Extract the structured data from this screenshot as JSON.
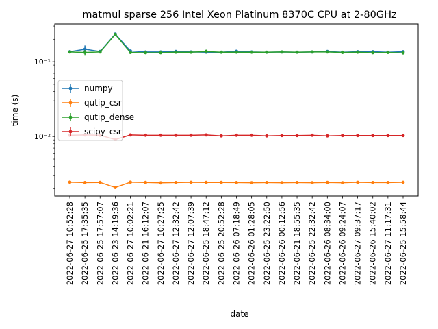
{
  "chart_data": {
    "type": "line",
    "title": "matmul sparse 256 Intel Xeon Platinum 8370C CPU at 2-80GHz",
    "xlabel": "date",
    "ylabel": "time (s)",
    "yscale": "log",
    "ylim": [
      0.0016,
      0.32
    ],
    "y_tick_labels": [
      "10⁻²",
      "10⁻¹"
    ],
    "y_tick_values": [
      0.01,
      0.1
    ],
    "legend_position": "center-left",
    "grid": false,
    "categories": [
      "2022-06-27 10:52:28",
      "2022-06-25 17:35:35",
      "2022-06-25 17:57:07",
      "2022-06-23 14:19:36",
      "2022-06-27 10:02:21",
      "2022-06-21 16:12:07",
      "2022-06-27 10:27:25",
      "2022-06-27 12:32:42",
      "2022-06-27 12:07:39",
      "2022-06-25 18:47:12",
      "2022-06-25 20:52:28",
      "2022-06-26 07:18:49",
      "2022-06-26 01:28:05",
      "2022-06-25 23:22:50",
      "2022-06-26 00:12:56",
      "2022-06-21 18:55:35",
      "2022-06-25 22:32:42",
      "2022-06-26 08:34:00",
      "2022-06-26 09:24:07",
      "2022-06-27 09:37:17",
      "2022-06-26 15:40:02",
      "2022-06-27 11:17:31",
      "2022-06-25 15:58:44"
    ],
    "series": [
      {
        "name": "numpy",
        "color": "#1f77b4",
        "values": [
          0.136,
          0.147,
          0.137,
          0.235,
          0.139,
          0.135,
          0.135,
          0.137,
          0.135,
          0.134,
          0.134,
          0.138,
          0.135,
          0.134,
          0.135,
          0.134,
          0.135,
          0.137,
          0.134,
          0.136,
          0.136,
          0.134,
          0.136
        ],
        "errors": [
          0.003,
          0.018,
          0.006,
          0.006,
          0.006,
          0.004,
          0.003,
          0.003,
          0.003,
          0.003,
          0.003,
          0.006,
          0.004,
          0.003,
          0.003,
          0.003,
          0.003,
          0.003,
          0.003,
          0.003,
          0.003,
          0.003,
          0.003
        ]
      },
      {
        "name": "qutip_csr",
        "color": "#ff7f0e",
        "values": [
          0.00245,
          0.00242,
          0.00243,
          0.00208,
          0.00245,
          0.00243,
          0.0024,
          0.00242,
          0.00244,
          0.00243,
          0.00243,
          0.00242,
          0.00241,
          0.00242,
          0.00241,
          0.00242,
          0.00241,
          0.00243,
          0.00241,
          0.00244,
          0.00242,
          0.00242,
          0.00244
        ],
        "errors": [
          5e-05,
          4e-05,
          4e-05,
          4e-05,
          4e-05,
          4e-05,
          4e-05,
          4e-05,
          4e-05,
          4e-05,
          4e-05,
          4e-05,
          4e-05,
          4e-05,
          4e-05,
          4e-05,
          4e-05,
          4e-05,
          4e-05,
          4e-05,
          4e-05,
          4e-05,
          4e-05
        ]
      },
      {
        "name": "qutip_dense",
        "color": "#2ca02c",
        "values": [
          0.135,
          0.133,
          0.135,
          0.232,
          0.133,
          0.132,
          0.132,
          0.134,
          0.134,
          0.137,
          0.134,
          0.134,
          0.134,
          0.134,
          0.135,
          0.134,
          0.135,
          0.135,
          0.133,
          0.134,
          0.132,
          0.133,
          0.131
        ],
        "errors": [
          0.003,
          0.01,
          0.005,
          0.008,
          0.004,
          0.003,
          0.003,
          0.003,
          0.003,
          0.008,
          0.003,
          0.003,
          0.003,
          0.003,
          0.003,
          0.003,
          0.003,
          0.003,
          0.003,
          0.003,
          0.003,
          0.003,
          0.003
        ]
      },
      {
        "name": "scipy_csr",
        "color": "#d62728",
        "values": [
          0.0104,
          0.0105,
          0.0104,
          0.0091,
          0.0105,
          0.0104,
          0.0104,
          0.0104,
          0.0104,
          0.0105,
          0.0102,
          0.0104,
          0.0104,
          0.0102,
          0.0103,
          0.0103,
          0.0104,
          0.0102,
          0.0103,
          0.0103,
          0.0103,
          0.0103,
          0.0103
        ],
        "errors": [
          0.0002,
          0.0002,
          0.0002,
          0.0004,
          0.0002,
          0.0002,
          0.0002,
          0.0002,
          0.0002,
          0.0002,
          0.0002,
          0.0002,
          0.0002,
          0.0002,
          0.0002,
          0.0002,
          0.0002,
          0.0002,
          0.0002,
          0.0002,
          0.0002,
          0.0002,
          0.0002
        ]
      }
    ]
  }
}
